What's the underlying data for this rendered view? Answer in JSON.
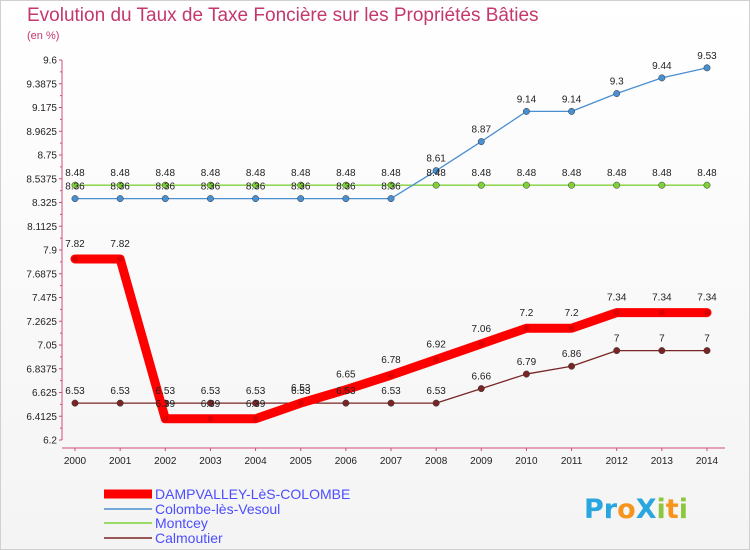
{
  "title": "Evolution du Taux de Taxe Foncière sur les Propriétés Bâties",
  "unit_label": "(en %)",
  "logo": {
    "text": "ProXiti",
    "colors": [
      "#2aa6de",
      "#2aa6de",
      "#f7941d",
      "#2aa6de",
      "#8dc63f",
      "#f7941d",
      "#8dc63f"
    ]
  },
  "chart_data": {
    "type": "line",
    "title": "Evolution du Taux de Taxe Foncière sur les Propriétés Bâties",
    "ylabel": "(en %)",
    "xlabel": "",
    "ylim": [
      6.2,
      9.6
    ],
    "grid": false,
    "legend_position": "bottom-left",
    "x": [
      "2000",
      "2001",
      "2002",
      "2003",
      "2004",
      "2005",
      "2006",
      "2007",
      "2008",
      "2009",
      "2010",
      "2011",
      "2012",
      "2013",
      "2014"
    ],
    "y_ticks": [
      "9.6",
      "9.3875",
      "9.175",
      "8.9625",
      "8.75",
      "8.5375",
      "8.325",
      "8.1125",
      "7.9",
      "7.6875",
      "7.475",
      "7.2625",
      "7.05",
      "6.8375",
      "6.625",
      "6.4125",
      "6.2"
    ],
    "series": [
      {
        "name": "DAMPVALLEY-LèS-COLOMBE",
        "color": "#ff0000",
        "values": [
          7.82,
          7.82,
          6.39,
          6.39,
          6.39,
          6.53,
          6.65,
          6.78,
          6.92,
          7.06,
          7.2,
          7.2,
          7.34,
          7.34,
          7.34
        ]
      },
      {
        "name": "Colombe-lès-Vesoul",
        "color": "#4a8fd0",
        "values": [
          8.36,
          8.36,
          8.36,
          8.36,
          8.36,
          8.36,
          8.36,
          8.36,
          8.61,
          8.87,
          9.14,
          9.14,
          9.3,
          9.44,
          9.53
        ]
      },
      {
        "name": "Montcey",
        "color": "#7fd13b",
        "values": [
          8.48,
          8.48,
          8.48,
          8.48,
          8.48,
          8.48,
          8.48,
          8.48,
          8.48,
          8.48,
          8.48,
          8.48,
          8.48,
          8.48,
          8.48
        ]
      },
      {
        "name": "Calmoutier",
        "color": "#7a2525",
        "values": [
          6.53,
          6.53,
          6.53,
          6.53,
          6.53,
          6.53,
          6.53,
          6.53,
          6.53,
          6.66,
          6.79,
          6.86,
          7,
          7,
          7
        ]
      }
    ]
  }
}
